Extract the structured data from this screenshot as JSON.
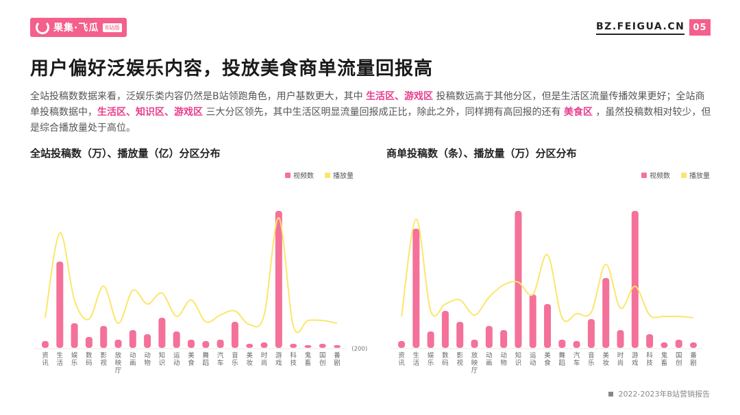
{
  "header": {
    "logo_text": "果集·飞瓜",
    "logo_tag": "B站版",
    "site_url": "BZ.FEIGUA.CN",
    "page_number": "05"
  },
  "title": "用户偏好泛娱乐内容，投放美食商单流量回报高",
  "lead": {
    "p1": "全站投稿数数据来看，泛娱乐类内容仍然是B站领跑角色，用户基数更大，其中",
    "h1": "生活区、游戏区",
    "p2": "投稿数远高于其他分区，但是生活区流量传播效果更好；全站商单投稿数据中，",
    "h2": "生活区、知识区、游戏区",
    "p3": "三大分区领先，其中生活区明显流量回报成正比，除此之外，同样拥有高回报的还有",
    "h3": "美食区",
    "p4": "，虽然投稿数相对较少，但是综合播放量处于高位。"
  },
  "colors": {
    "accent": "#f4608b",
    "bar": "#f4719a",
    "line": "#fbe66a"
  },
  "footer": {
    "text": "2022-2023年B站营销报告"
  },
  "chart_data": [
    {
      "type": "bar",
      "title": "全站投稿数（万）、播放量（亿）分区分布",
      "legend_position": "top-right",
      "grid": false,
      "ylim": [
        0,
        100
      ],
      "categories": [
        "资讯",
        "生活",
        "娱乐",
        "数码",
        "影视",
        "放映厅",
        "动画",
        "动物",
        "知识",
        "运动",
        "美食",
        "舞蹈",
        "汽车",
        "音乐",
        "美妆",
        "时尚",
        "游戏",
        "科技",
        "鬼畜",
        "国创",
        "番剧"
      ],
      "series": [
        {
          "name": "视频数",
          "kind": "bar",
          "values": [
            5,
            63,
            18,
            8,
            16,
            6,
            13,
            10,
            22,
            12,
            6,
            5,
            6,
            19,
            3,
            4,
            100,
            3,
            2,
            3,
            2
          ]
        },
        {
          "name": "播放量",
          "kind": "line",
          "values": [
            22,
            84,
            35,
            21,
            45,
            18,
            42,
            32,
            40,
            23,
            35,
            19,
            24,
            27,
            17,
            24,
            95,
            16,
            20,
            20,
            18
          ]
        }
      ],
      "extra_label": "(200)"
    },
    {
      "type": "bar",
      "title": "商单投稿数（条）、播放量（万）分区分布",
      "legend_position": "top-right",
      "grid": false,
      "ylim": [
        0,
        100
      ],
      "categories": [
        "资讯",
        "生活",
        "娱乐",
        "数码",
        "影视",
        "放映厅",
        "动画",
        "动物",
        "知识",
        "运动",
        "美食",
        "舞蹈",
        "汽车",
        "音乐",
        "美妆",
        "时尚",
        "游戏",
        "科技",
        "鬼畜",
        "国创",
        "番剧"
      ],
      "series": [
        {
          "name": "视频数",
          "kind": "bar",
          "values": [
            5,
            87,
            12,
            27,
            19,
            6,
            16,
            13,
            100,
            39,
            32,
            6,
            5,
            21,
            51,
            13,
            100,
            10,
            4,
            6,
            4
          ]
        },
        {
          "name": "播放量",
          "kind": "line",
          "values": [
            23,
            94,
            27,
            32,
            35,
            24,
            37,
            46,
            48,
            39,
            68,
            22,
            25,
            26,
            61,
            29,
            45,
            24,
            23,
            23,
            22
          ]
        }
      ]
    }
  ]
}
